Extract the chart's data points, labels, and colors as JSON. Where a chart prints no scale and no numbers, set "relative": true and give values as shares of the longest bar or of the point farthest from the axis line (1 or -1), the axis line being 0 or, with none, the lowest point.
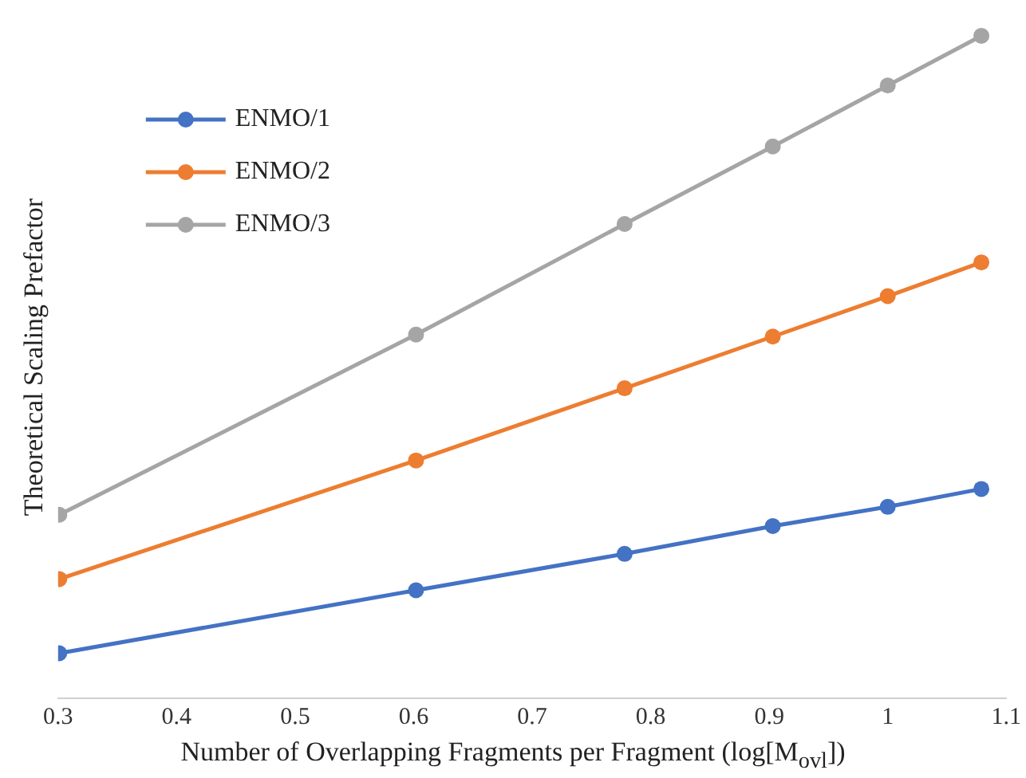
{
  "chart_data": {
    "type": "line",
    "relative": true,
    "xlabel": "Number of Overlapping Fragments per Fragment (log[M$_{ovl}$])",
    "ylabel": "Theoretical Scaling Prefactor",
    "x": [
      0.301,
      0.602,
      0.778,
      0.903,
      1,
      1.079
    ],
    "xlim": [
      0.3,
      1.1
    ],
    "xticks": [
      0.3,
      0.4,
      0.5,
      0.6,
      0.7,
      0.8,
      0.9,
      1,
      1.1
    ],
    "series": [
      {
        "name": "ENMO/1",
        "color": "#4472c4",
        "values": [
          0.068,
          0.163,
          0.218,
          0.26,
          0.289,
          0.316
        ]
      },
      {
        "name": "ENMO/2",
        "color": "#ed7d31",
        "values": [
          0.18,
          0.359,
          0.468,
          0.546,
          0.607,
          0.658
        ]
      },
      {
        "name": "ENMO/3",
        "color": "#a5a5a5",
        "values": [
          0.277,
          0.549,
          0.716,
          0.833,
          0.925,
          1
        ]
      }
    ],
    "grid": false,
    "legend": "top left",
    "marker": "circle",
    "line_style": "solid"
  }
}
